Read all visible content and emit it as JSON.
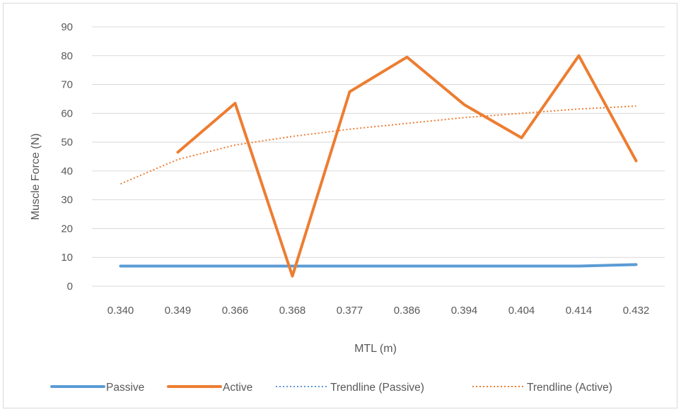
{
  "chart_data": {
    "type": "line",
    "title": "",
    "xlabel": "MTL (m)",
    "ylabel": "Muscle Force (N)",
    "ylim": [
      0,
      90
    ],
    "yticks": [
      0,
      10,
      20,
      30,
      40,
      50,
      60,
      70,
      80,
      90
    ],
    "categories": [
      "0.340",
      "0.349",
      "0.366",
      "0.368",
      "0.377",
      "0.386",
      "0.394",
      "0.404",
      "0.414",
      "0.432"
    ],
    "grid": "horizontal",
    "legend_position": "bottom",
    "series": [
      {
        "name": "Passive",
        "style": "solid",
        "color": "#5b9bd5",
        "values": [
          7.0,
          7.0,
          7.0,
          7.0,
          7.0,
          7.0,
          7.0,
          7.0,
          7.0,
          7.5
        ]
      },
      {
        "name": "Active",
        "style": "solid",
        "color": "#ed7d31",
        "values": [
          null,
          46.5,
          63.5,
          3.5,
          67.5,
          79.5,
          63,
          51.5,
          80,
          43.5
        ]
      },
      {
        "name": "Trendline (Passive)",
        "style": "dotted",
        "color": "#5b9bd5",
        "values": [
          7.0,
          7.0,
          7.0,
          7.0,
          7.0,
          7.0,
          7.0,
          7.0,
          7.0,
          7.2
        ]
      },
      {
        "name": "Trendline (Active)",
        "style": "dotted",
        "color": "#ed7d31",
        "values": [
          35.5,
          44,
          49,
          52,
          54.5,
          56.5,
          58.5,
          60,
          61.5,
          62.5
        ]
      }
    ]
  }
}
